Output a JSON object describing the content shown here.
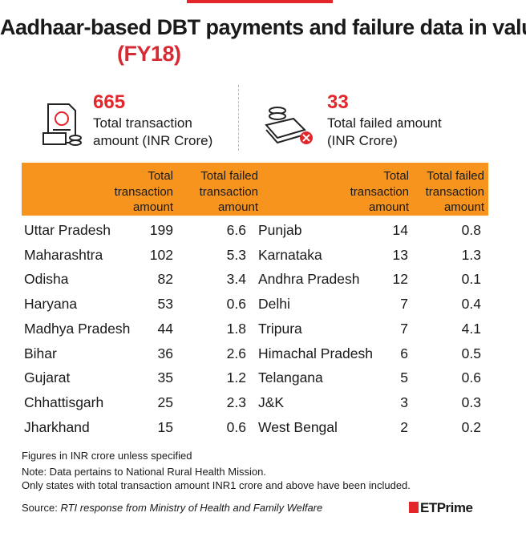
{
  "header": {
    "title": "Aadhaar-based DBT payments and failure data in value terms",
    "title_highlight": "(FY18)"
  },
  "stats": [
    {
      "value": 665,
      "label": "Total transaction amount (INR Crore)"
    },
    {
      "value": 33,
      "label": "Total failed amount (INR Crore)"
    }
  ],
  "table": {
    "headers": [
      "Total transaction amount",
      "Total failed transaction amount"
    ],
    "left_rows": [
      [
        "Uttar Pradesh",
        199,
        6.6
      ],
      [
        "Maharashtra",
        102,
        5.3
      ],
      [
        "Odisha",
        82,
        3.4
      ],
      [
        "Haryana",
        53,
        0.6
      ],
      [
        "Madhya Pradesh",
        44,
        1.8
      ],
      [
        "Bihar",
        36,
        2.6
      ],
      [
        "Gujarat",
        35,
        1.2
      ],
      [
        "Chhattisgarh",
        25,
        2.3
      ],
      [
        "Jharkhand",
        15,
        0.6
      ]
    ],
    "right_rows": [
      [
        "Punjab",
        14,
        0.8
      ],
      [
        "Karnataka",
        13,
        1.3
      ],
      [
        "Andhra Pradesh",
        12,
        0.1
      ],
      [
        "Delhi",
        7,
        0.4
      ],
      [
        "Tripura",
        7,
        4.1
      ],
      [
        "Himachal Pradesh",
        6,
        0.5
      ],
      [
        "Telangana",
        5,
        0.6
      ],
      [
        "J&K",
        3,
        0.3
      ],
      [
        "West Bengal",
        2,
        0.2
      ]
    ]
  },
  "notes": [
    "Figures in INR crore unless specified",
    "Note: Data pertains to National Rural Health Mission.",
    "Only states with total transaction amount INR1 crore and above have been included."
  ],
  "source": {
    "label": "Source:",
    "text": "RTI response from Ministry of Health and Family Welfare"
  },
  "logo": {
    "text": "ETPrime"
  }
}
